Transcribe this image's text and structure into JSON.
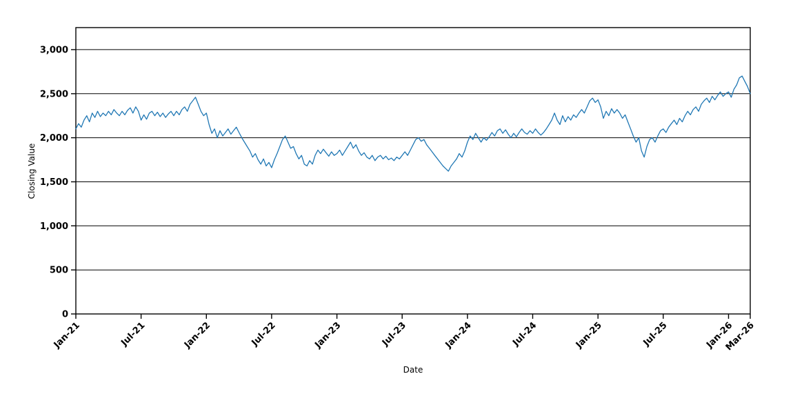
{
  "chart_data": {
    "type": "line",
    "title": "",
    "xlabel": "Date",
    "ylabel": "Closing Value",
    "x_unit": "months since Jan-2021",
    "x_step": 0.25,
    "xlim": [
      0,
      62
    ],
    "ylim": [
      0,
      3250
    ],
    "grid": "horizontal",
    "legend": "none",
    "line_color": "#1f77b4",
    "background": "#ffffff",
    "xticks": [
      {
        "v": 0,
        "label": "Jan-21"
      },
      {
        "v": 6,
        "label": "Jul-21"
      },
      {
        "v": 12,
        "label": "Jan-22"
      },
      {
        "v": 18,
        "label": "Jul-22"
      },
      {
        "v": 24,
        "label": "Jan-23"
      },
      {
        "v": 30,
        "label": "Jul-23"
      },
      {
        "v": 36,
        "label": "Jan-24"
      },
      {
        "v": 42,
        "label": "Jul-24"
      },
      {
        "v": 48,
        "label": "Jan-25"
      },
      {
        "v": 54,
        "label": "Jul-25"
      },
      {
        "v": 60,
        "label": "Jan-26"
      },
      {
        "v": 62,
        "label": "Mar-26"
      }
    ],
    "yticks": [
      {
        "v": 0,
        "label": "0"
      },
      {
        "v": 500,
        "label": "500"
      },
      {
        "v": 1000,
        "label": "1,000"
      },
      {
        "v": 1500,
        "label": "1,500"
      },
      {
        "v": 2000,
        "label": "2,000"
      },
      {
        "v": 2500,
        "label": "2,500"
      },
      {
        "v": 3000,
        "label": "3,000"
      }
    ],
    "series": [
      {
        "name": "Closing Value",
        "values": [
          2100,
          2160,
          2120,
          2200,
          2250,
          2180,
          2280,
          2230,
          2300,
          2240,
          2280,
          2250,
          2300,
          2260,
          2320,
          2280,
          2250,
          2300,
          2260,
          2310,
          2340,
          2280,
          2350,
          2300,
          2200,
          2260,
          2210,
          2280,
          2300,
          2250,
          2290,
          2240,
          2280,
          2230,
          2270,
          2300,
          2250,
          2300,
          2260,
          2320,
          2350,
          2300,
          2380,
          2420,
          2460,
          2380,
          2300,
          2250,
          2280,
          2150,
          2050,
          2100,
          2000,
          2080,
          2020,
          2060,
          2100,
          2040,
          2080,
          2120,
          2060,
          2000,
          1950,
          1900,
          1850,
          1780,
          1820,
          1750,
          1700,
          1760,
          1680,
          1720,
          1660,
          1750,
          1820,
          1900,
          1980,
          2020,
          1950,
          1880,
          1900,
          1820,
          1760,
          1800,
          1700,
          1680,
          1740,
          1700,
          1800,
          1860,
          1820,
          1870,
          1830,
          1790,
          1840,
          1800,
          1820,
          1860,
          1800,
          1850,
          1900,
          1950,
          1880,
          1920,
          1850,
          1800,
          1830,
          1780,
          1760,
          1800,
          1740,
          1780,
          1800,
          1760,
          1790,
          1750,
          1770,
          1740,
          1780,
          1760,
          1800,
          1840,
          1800,
          1860,
          1920,
          1980,
          2000,
          1960,
          1980,
          1920,
          1880,
          1840,
          1800,
          1760,
          1720,
          1680,
          1650,
          1620,
          1680,
          1720,
          1760,
          1820,
          1780,
          1850,
          1950,
          2020,
          1980,
          2050,
          2000,
          1950,
          2000,
          1970,
          2010,
          2060,
          2020,
          2080,
          2100,
          2050,
          2090,
          2040,
          2000,
          2050,
          2010,
          2060,
          2100,
          2060,
          2040,
          2080,
          2050,
          2100,
          2060,
          2030,
          2060,
          2100,
          2150,
          2200,
          2280,
          2200,
          2150,
          2250,
          2180,
          2240,
          2200,
          2260,
          2230,
          2280,
          2320,
          2280,
          2350,
          2420,
          2450,
          2400,
          2430,
          2350,
          2220,
          2300,
          2250,
          2330,
          2280,
          2320,
          2280,
          2220,
          2260,
          2180,
          2100,
          2020,
          1950,
          2000,
          1850,
          1780,
          1900,
          1980,
          2000,
          1950,
          2020,
          2080,
          2100,
          2060,
          2120,
          2160,
          2200,
          2150,
          2220,
          2180,
          2250,
          2300,
          2260,
          2320,
          2350,
          2300,
          2380,
          2420,
          2450,
          2400,
          2470,
          2430,
          2480,
          2520,
          2470,
          2500,
          2520,
          2460,
          2550,
          2600,
          2680,
          2700,
          2640,
          2580,
          2500
        ]
      }
    ]
  }
}
